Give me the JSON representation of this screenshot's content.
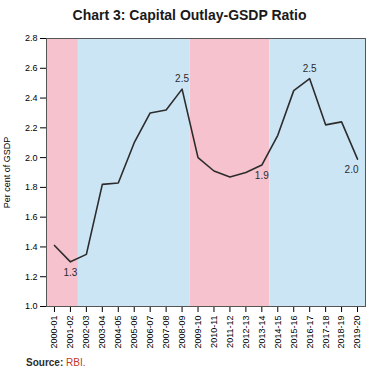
{
  "chart_data": {
    "type": "line",
    "title": "Chart 3: Capital Outlay-GSDP Ratio",
    "ylabel": "Per cent of GSDP",
    "source_label": "Source: ",
    "source_value": "RBI.",
    "source_color": "#c0392b",
    "categories": [
      "2000-01",
      "2001-02",
      "2002-03",
      "2003-04",
      "2004-05",
      "2005-06",
      "2006-07",
      "2007-08",
      "2008-09",
      "2009-10",
      "2010-11",
      "2011-12",
      "2012-13",
      "2013-14",
      "2014-15",
      "2015-16",
      "2016-17",
      "2017-18",
      "2018-19",
      "2019-20"
    ],
    "values": [
      1.41,
      1.3,
      1.35,
      1.82,
      1.83,
      2.1,
      2.3,
      2.32,
      2.46,
      2.0,
      1.91,
      1.87,
      1.9,
      1.95,
      2.15,
      2.45,
      2.53,
      2.22,
      2.24,
      1.99
    ],
    "color": "#2c2c2c",
    "ylim": [
      1.0,
      2.8
    ],
    "yticks": [
      {
        "value": 1.0,
        "label": "1.0"
      },
      1.2,
      1.4,
      1.6,
      1.8,
      {
        "value": 2.0,
        "label": "2.0"
      },
      2.2,
      2.4,
      2.6,
      2.8
    ],
    "grid": false,
    "annotations": [
      {
        "category": "2001-02",
        "y": 1.3,
        "text": "1.3"
      },
      {
        "category": "2008-09",
        "y": 2.46,
        "text": "2.5"
      },
      {
        "category": "2013-14",
        "y": 1.95,
        "text": "1.9"
      },
      {
        "category": "2016-17",
        "y": 2.53,
        "text": "2.5"
      },
      {
        "category": "2019-20",
        "y": 1.99,
        "text": "2.0"
      }
    ],
    "bands": [
      {
        "from": "2000-01",
        "to": "2001-02",
        "color": "#f5c2ce"
      },
      {
        "from": "2009-10",
        "to": "2013-14",
        "color": "#f5c2ce"
      },
      {
        "from": "2002-03",
        "to": "2008-09",
        "color": "#cce5f5"
      },
      {
        "from": "2014-15",
        "to": "2019-20",
        "color": "#cce5f5"
      }
    ]
  }
}
